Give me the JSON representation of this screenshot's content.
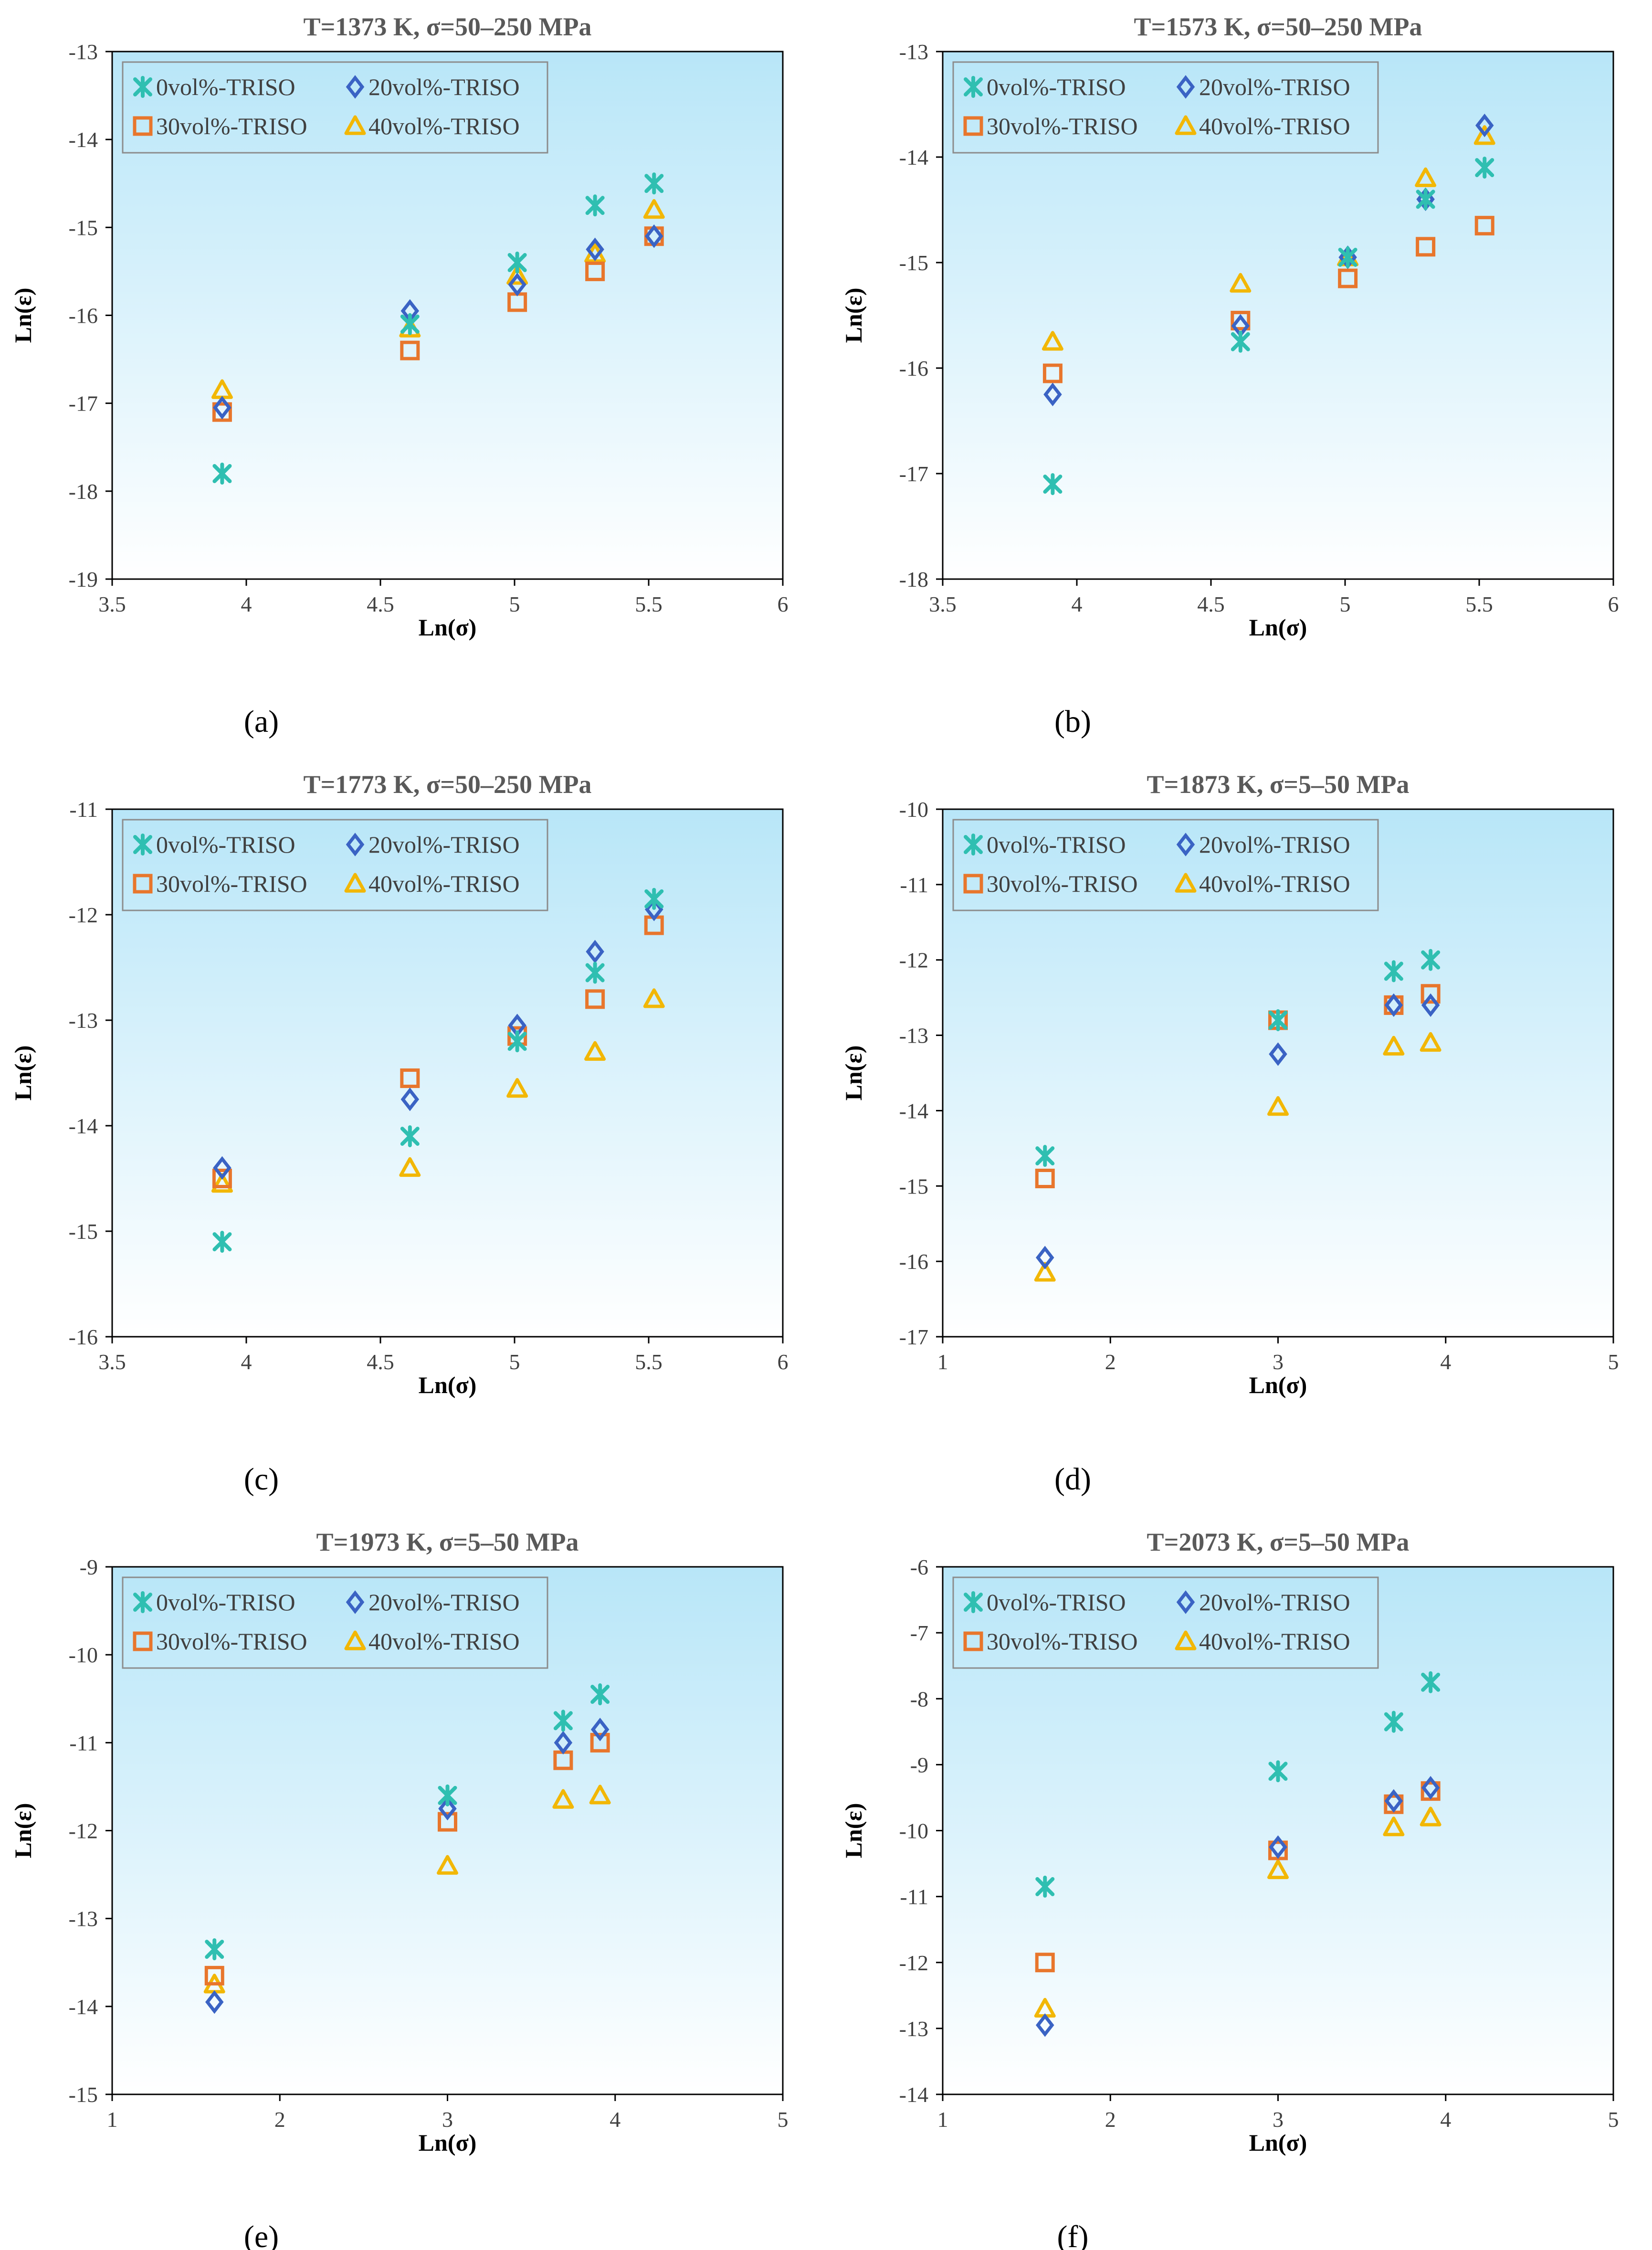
{
  "colors": {
    "series0": "#2fbfb1",
    "series20": "#3a63c4",
    "series30": "#e8762c",
    "series40": "#f2b705",
    "plot_top": "#b8e6f8",
    "plot_bottom": "#ffffff",
    "title": "#595959",
    "axis_text": "#404040"
  },
  "chart_data": [
    {
      "panel_label": "(a)",
      "type": "scatter",
      "title": "T=1373 K, σ=50–250 MPa",
      "xlabel": "Ln(σ)",
      "ylabel": "Ln(ε)",
      "xlim": [
        3.5,
        6
      ],
      "ylim": [
        -19,
        -13
      ],
      "xticks": [
        "3.5",
        "4",
        "4.5",
        "5",
        "5.5",
        "6"
      ],
      "yticks": [
        "-19",
        "-18",
        "-17",
        "-16",
        "-15",
        "-14",
        "-13"
      ],
      "x": [
        3.91,
        4.61,
        5.01,
        5.3,
        5.52
      ],
      "series": [
        {
          "name": "0vol%-TRISO",
          "marker": "star",
          "values": [
            -17.8,
            -16.1,
            -15.4,
            -14.75,
            -14.5
          ]
        },
        {
          "name": "20vol%-TRISO",
          "marker": "diamond",
          "values": [
            -17.05,
            -15.95,
            -15.65,
            -15.25,
            -15.1
          ]
        },
        {
          "name": "30vol%-TRISO",
          "marker": "square",
          "values": [
            -17.1,
            -16.4,
            -15.85,
            -15.5,
            -15.1
          ]
        },
        {
          "name": "40vol%-TRISO",
          "marker": "triangle",
          "values": [
            -16.85,
            -16.15,
            -15.55,
            -15.3,
            -14.8
          ]
        }
      ]
    },
    {
      "panel_label": "(b)",
      "type": "scatter",
      "title": "T=1573 K, σ=50–250 MPa",
      "xlabel": "Ln(σ)",
      "ylabel": "Ln(ε)",
      "xlim": [
        3.5,
        6
      ],
      "ylim": [
        -18,
        -13
      ],
      "xticks": [
        "3.5",
        "4",
        "4.5",
        "5",
        "5.5",
        "6"
      ],
      "yticks": [
        "-18",
        "-17",
        "-16",
        "-15",
        "-14",
        "-13"
      ],
      "x": [
        3.91,
        4.61,
        5.01,
        5.3,
        5.52
      ],
      "series": [
        {
          "name": "0vol%-TRISO",
          "marker": "star",
          "values": [
            -17.1,
            -15.75,
            -14.95,
            -14.4,
            -14.1
          ]
        },
        {
          "name": "20vol%-TRISO",
          "marker": "diamond",
          "values": [
            -16.25,
            -15.6,
            -14.95,
            -14.4,
            -13.7
          ]
        },
        {
          "name": "30vol%-TRISO",
          "marker": "square",
          "values": [
            -16.05,
            -15.55,
            -15.15,
            -14.85,
            -14.65
          ]
        },
        {
          "name": "40vol%-TRISO",
          "marker": "triangle",
          "values": [
            -15.75,
            -15.2,
            -14.95,
            -14.2,
            -13.8
          ]
        }
      ]
    },
    {
      "panel_label": "(c)",
      "type": "scatter",
      "title": "T=1773 K, σ=50–250 MPa",
      "xlabel": "Ln(σ)",
      "ylabel": "Ln(ε)",
      "xlim": [
        3.5,
        6
      ],
      "ylim": [
        -16,
        -11
      ],
      "xticks": [
        "3.5",
        "4",
        "4.5",
        "5",
        "5.5",
        "6"
      ],
      "yticks": [
        "-16",
        "-15",
        "-14",
        "-13",
        "-12",
        "-11"
      ],
      "x": [
        3.91,
        4.61,
        5.01,
        5.3,
        5.52
      ],
      "series": [
        {
          "name": "0vol%-TRISO",
          "marker": "star",
          "values": [
            -15.1,
            -14.1,
            -13.2,
            -12.55,
            -11.85
          ]
        },
        {
          "name": "20vol%-TRISO",
          "marker": "diamond",
          "values": [
            -14.4,
            -13.75,
            -13.05,
            -12.35,
            -11.95
          ]
        },
        {
          "name": "30vol%-TRISO",
          "marker": "square",
          "values": [
            -14.5,
            -13.55,
            -13.15,
            -12.8,
            -12.1
          ]
        },
        {
          "name": "40vol%-TRISO",
          "marker": "triangle",
          "values": [
            -14.55,
            -14.4,
            -13.65,
            -13.3,
            -12.8
          ]
        }
      ]
    },
    {
      "panel_label": "(d)",
      "type": "scatter",
      "title": "T=1873 K, σ=5–50 MPa",
      "xlabel": "Ln(σ)",
      "ylabel": "Ln(ε)",
      "xlim": [
        1,
        5
      ],
      "ylim": [
        -17,
        -10
      ],
      "xticks": [
        "1",
        "2",
        "3",
        "4",
        "5"
      ],
      "yticks": [
        "-17",
        "-16",
        "-15",
        "-14",
        "-13",
        "-12",
        "-11",
        "-10"
      ],
      "x": [
        1.61,
        3.0,
        3.69,
        3.91
      ],
      "series": [
        {
          "name": "0vol%-TRISO",
          "marker": "star",
          "values": [
            -14.6,
            -12.8,
            -12.15,
            -12.0
          ]
        },
        {
          "name": "20vol%-TRISO",
          "marker": "diamond",
          "values": [
            -15.95,
            -13.25,
            -12.6,
            -12.6
          ]
        },
        {
          "name": "30vol%-TRISO",
          "marker": "square",
          "values": [
            -14.9,
            -12.8,
            -12.6,
            -12.45
          ]
        },
        {
          "name": "40vol%-TRISO",
          "marker": "triangle",
          "values": [
            -16.15,
            -13.95,
            -13.15,
            -13.1
          ]
        }
      ]
    },
    {
      "panel_label": "(e)",
      "type": "scatter",
      "title": "T=1973 K, σ=5–50 MPa",
      "xlabel": "Ln(σ)",
      "ylabel": "Ln(ε)",
      "xlim": [
        1,
        5
      ],
      "ylim": [
        -15,
        -9
      ],
      "xticks": [
        "1",
        "2",
        "3",
        "4",
        "5"
      ],
      "yticks": [
        "-15",
        "-14",
        "-13",
        "-12",
        "-11",
        "-10",
        "-9"
      ],
      "x": [
        1.61,
        3.0,
        3.69,
        3.91
      ],
      "series": [
        {
          "name": "0vol%-TRISO",
          "marker": "star",
          "values": [
            -13.35,
            -11.6,
            -10.75,
            -10.45
          ]
        },
        {
          "name": "20vol%-TRISO",
          "marker": "diamond",
          "values": [
            -13.95,
            -11.75,
            -11.0,
            -10.85
          ]
        },
        {
          "name": "30vol%-TRISO",
          "marker": "square",
          "values": [
            -13.65,
            -11.9,
            -11.2,
            -11.0
          ]
        },
        {
          "name": "40vol%-TRISO",
          "marker": "triangle",
          "values": [
            -13.75,
            -12.4,
            -11.65,
            -11.6
          ]
        }
      ]
    },
    {
      "panel_label": "(f)",
      "type": "scatter",
      "title": "T=2073 K, σ=5–50 MPa",
      "xlabel": "Ln(σ)",
      "ylabel": "Ln(ε)",
      "xlim": [
        1,
        5
      ],
      "ylim": [
        -14,
        -6
      ],
      "xticks": [
        "1",
        "2",
        "3",
        "4",
        "5"
      ],
      "yticks": [
        "-14",
        "-13",
        "-12",
        "-11",
        "-10",
        "-9",
        "-8",
        "-7",
        "-6"
      ],
      "x": [
        1.61,
        3.0,
        3.69,
        3.91
      ],
      "series": [
        {
          "name": "0vol%-TRISO",
          "marker": "star",
          "values": [
            -10.85,
            -9.1,
            -8.35,
            -7.75
          ]
        },
        {
          "name": "20vol%-TRISO",
          "marker": "diamond",
          "values": [
            -12.95,
            -10.25,
            -9.55,
            -9.35
          ]
        },
        {
          "name": "30vol%-TRISO",
          "marker": "square",
          "values": [
            -12.0,
            -10.3,
            -9.6,
            -9.4
          ]
        },
        {
          "name": "40vol%-TRISO",
          "marker": "triangle",
          "values": [
            -12.7,
            -10.6,
            -9.95,
            -9.8
          ]
        }
      ]
    }
  ]
}
